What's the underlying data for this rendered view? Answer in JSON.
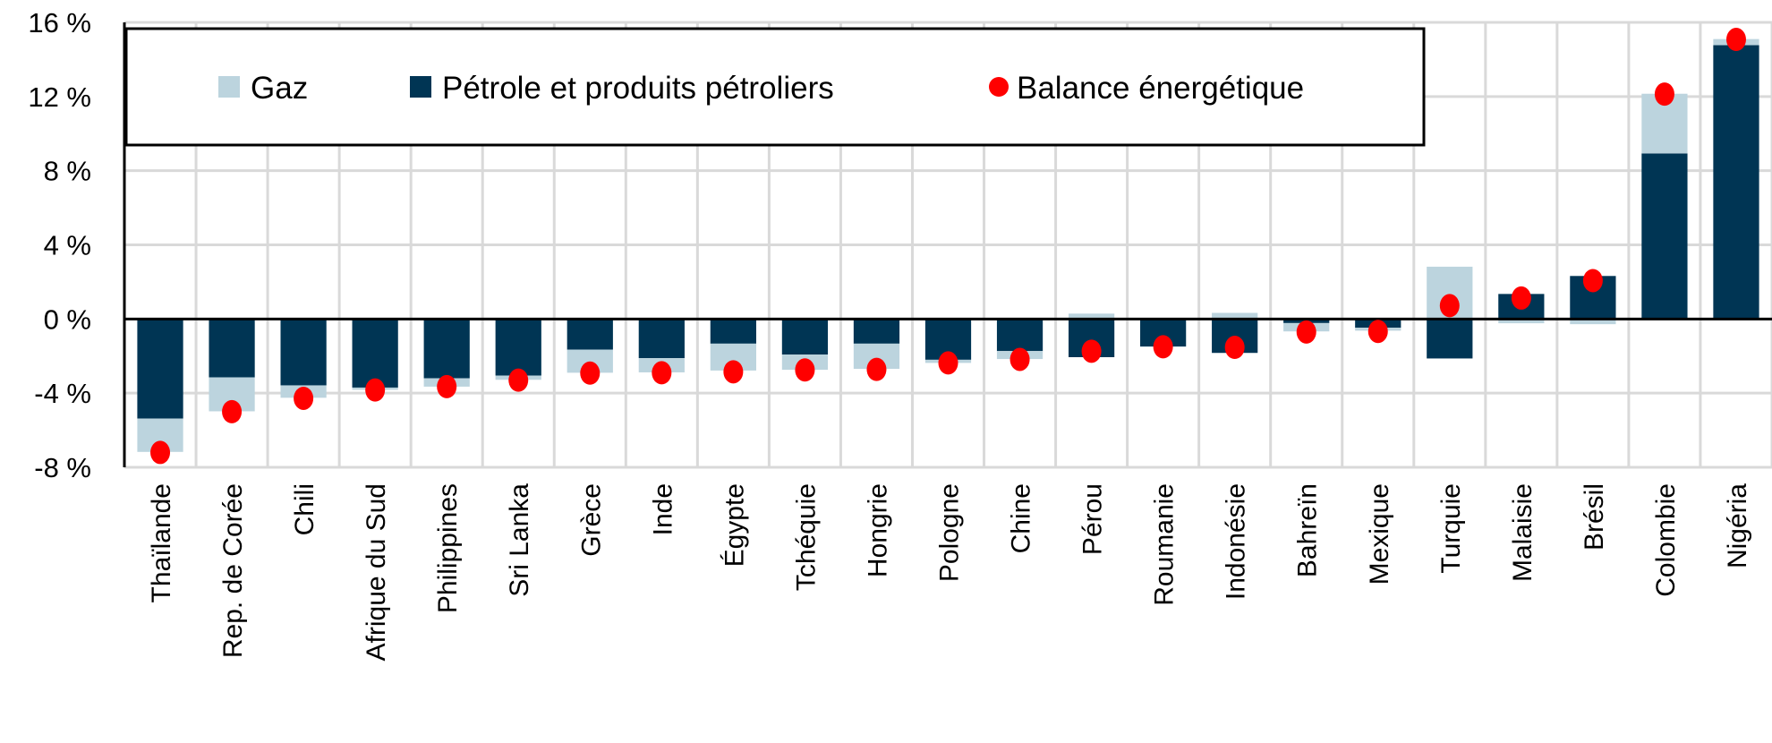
{
  "chart_data": {
    "type": "bar",
    "stacked": true,
    "title": "",
    "xlabel": "",
    "ylabel": "",
    "ylim": [
      -8,
      16
    ],
    "yticks": [
      -8,
      -4,
      0,
      4,
      8,
      12,
      16
    ],
    "ytick_labels": [
      "-8 %",
      "-4 %",
      "0 %",
      "4 %",
      "8 %",
      "12 %",
      "16 %"
    ],
    "grid": true,
    "legend_placement": "top",
    "categories": [
      "Thaïlande",
      "Rep. de Corée",
      "Chili",
      "Afrique du Sud",
      "Philippines",
      "Sri Lanka",
      "Grèce",
      "Inde",
      "Égypte",
      "Tchéquie",
      "Hongrie",
      "Pologne",
      "Chine",
      "Pérou",
      "Roumanie",
      "Indonésie",
      "Bahreïn",
      "Mexique",
      "Turquie",
      "Malaisie",
      "Brésil",
      "Colombie",
      "Nigéria"
    ],
    "series": [
      {
        "name": "Gaz",
        "kind": "bar",
        "color": "#bcd4de",
        "values": [
          -1.8,
          -1.83,
          -0.67,
          -0.12,
          -0.45,
          -0.23,
          -1.25,
          -0.77,
          -1.45,
          -0.82,
          -1.36,
          -0.17,
          -0.43,
          0.29,
          -0.03,
          0.33,
          -0.45,
          -0.16,
          2.82,
          -0.23,
          -0.28,
          3.22,
          0.33
        ]
      },
      {
        "name": "Pétrole et produits pétroliers",
        "kind": "bar",
        "color": "#003554",
        "values": [
          -5.37,
          -3.15,
          -3.58,
          -3.7,
          -3.2,
          -3.05,
          -1.65,
          -2.11,
          -1.33,
          -1.92,
          -1.33,
          -2.2,
          -1.73,
          -2.06,
          -1.48,
          -1.83,
          -0.22,
          -0.47,
          -2.13,
          1.35,
          2.32,
          8.93,
          14.77
        ]
      },
      {
        "name": "Balance énergétique",
        "kind": "point",
        "color": "#ff0000",
        "values": [
          -7.2,
          -5.0,
          -4.28,
          -3.83,
          -3.65,
          -3.3,
          -2.92,
          -2.9,
          -2.85,
          -2.75,
          -2.72,
          -2.37,
          -2.18,
          -1.74,
          -1.5,
          -1.53,
          -0.7,
          -0.67,
          0.72,
          1.13,
          2.07,
          12.13,
          15.08
        ]
      }
    ]
  }
}
